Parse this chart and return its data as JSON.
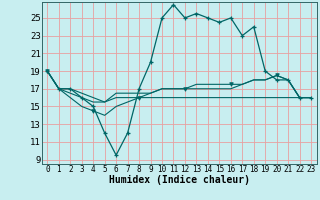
{
  "xlabel": "Humidex (Indice chaleur)",
  "x_ticks": [
    0,
    1,
    2,
    3,
    4,
    5,
    6,
    7,
    8,
    9,
    10,
    11,
    12,
    13,
    14,
    15,
    16,
    17,
    18,
    19,
    20,
    21,
    22,
    23
  ],
  "y_ticks": [
    9,
    11,
    13,
    15,
    17,
    19,
    21,
    23,
    25
  ],
  "xlim": [
    -0.5,
    23.5
  ],
  "ylim": [
    8.5,
    26.8
  ],
  "bg_color": "#c8eef0",
  "grid_color": "#e8a0a0",
  "line_color": "#006666",
  "line1_x": [
    0,
    1,
    2,
    3,
    4,
    5,
    6,
    7,
    8,
    9,
    10,
    11,
    12,
    13,
    14,
    15,
    16,
    17,
    18,
    19,
    20,
    21,
    22,
    23
  ],
  "line1_y": [
    19,
    17,
    17,
    16,
    15,
    12,
    9.5,
    12,
    17,
    20,
    25,
    26.5,
    25,
    25.5,
    25,
    24.5,
    25,
    23,
    24,
    19,
    18,
    18,
    16,
    16
  ],
  "line2_x": [
    0,
    1,
    2,
    3,
    4,
    5,
    6,
    7,
    8,
    9,
    10,
    11,
    12,
    13,
    14,
    15,
    16,
    17,
    18,
    19,
    20,
    21,
    22,
    23
  ],
  "line2_y": [
    19,
    17,
    16,
    15,
    14.5,
    14,
    15,
    15.5,
    16,
    16.5,
    17,
    17,
    17,
    17.5,
    17.5,
    17.5,
    17.5,
    17.5,
    18,
    18,
    18.5,
    18,
    16,
    16
  ],
  "line3_x": [
    0,
    1,
    2,
    3,
    4,
    5,
    6,
    7,
    8,
    9,
    10,
    11,
    12,
    13,
    14,
    15,
    16,
    17,
    18,
    19,
    20,
    21,
    22,
    23
  ],
  "line3_y": [
    19,
    17,
    16.5,
    16,
    15.5,
    15.5,
    16.5,
    16.5,
    16.5,
    16.5,
    17,
    17,
    17,
    17,
    17,
    17,
    17,
    17.5,
    18,
    18,
    18.5,
    18,
    16,
    16
  ],
  "line4_x": [
    0,
    1,
    2,
    3,
    4,
    5,
    6,
    7,
    8,
    9,
    10,
    11,
    12,
    13,
    14,
    15,
    16,
    17,
    18,
    19,
    20,
    21,
    22,
    23
  ],
  "line4_y": [
    19,
    17,
    17,
    16.5,
    16,
    15.5,
    16,
    16,
    16,
    16,
    16,
    16,
    16,
    16,
    16,
    16,
    16,
    16,
    16,
    16,
    16,
    16,
    16,
    16
  ],
  "xlabel_fontsize": 7,
  "xtick_fontsize": 5.5,
  "ytick_fontsize": 6.5
}
